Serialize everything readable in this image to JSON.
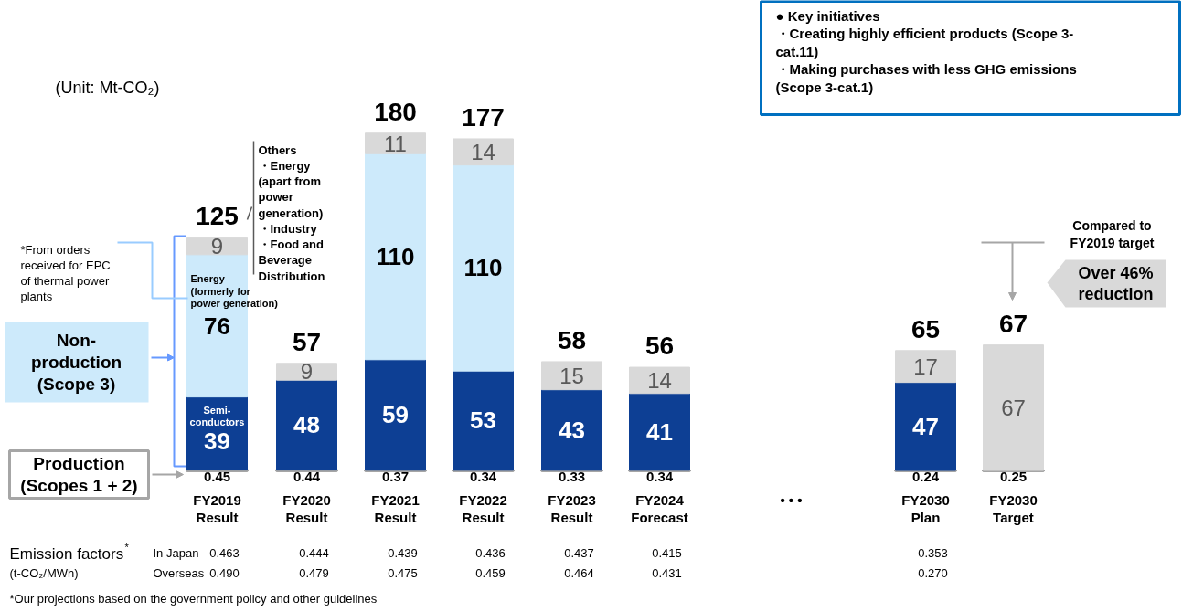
{
  "chart_data": {
    "type": "bar",
    "stacked": true,
    "data_labels": true,
    "legend": "left",
    "categories": [
      "FY2019\nResult",
      "FY2020\nResult",
      "FY2021\nResult",
      "FY2022\nResult",
      "FY2023\nResult",
      "FY2024\nForecast",
      "• • •",
      "FY2030\nPlan",
      "FY2030\nTarget"
    ],
    "series": [
      {
        "name": "Production\n(Scopes 1 + 2)",
        "color": "#ffffff",
        "values": [
          0.45,
          0.44,
          0.37,
          0.34,
          0.33,
          0.34,
          null,
          0.24,
          0.25
        ]
      },
      {
        "name": "Semi-\nconductors",
        "color": "#0d3f94",
        "values": [
          39,
          48,
          59,
          53,
          43,
          41,
          null,
          47,
          null
        ]
      },
      {
        "name": "Energy\n(formerly for\npower generation)",
        "color": "#cdeafb",
        "values": [
          76,
          null,
          110,
          110,
          null,
          null,
          null,
          null,
          null
        ]
      },
      {
        "color": "#d9d9d9",
        "values": [
          9,
          9,
          11,
          14,
          15,
          14,
          null,
          17,
          67
        ]
      }
    ],
    "totals": [
      "125",
      "57",
      "180",
      "177",
      "58",
      "56",
      null,
      "65",
      "67"
    ],
    "annotations": [
      "(Unit: Mt-CO₂)",
      "● Key initiatives\n・Creating highly efficient products (Scope 3-\n  cat.11)\n・Making purchases with less GHG emissions\n  (Scope 3-cat.1)",
      "Compared to\nFY2019 target",
      "Over 46%\nreduction",
      "Non-\nproduction\n(Scope 3)",
      "*From orders\nreceived for EPC\nof thermal power\nplants",
      "Others\n・Energy\n (apart from\n power\n generation)\n・Industry\n・Food and\n Beverage\n Distribution",
      "Emission factors$^{*}$",
      "(t-CO₂/MWh)",
      "In Japan",
      "0.463",
      "0.444",
      "0.439",
      "0.436",
      "0.437",
      "0.415",
      "0.353",
      "Overseas",
      "0.490",
      "0.479",
      "0.475",
      "0.459",
      "0.464",
      "0.431",
      "0.270",
      "*Our projections based on the government policy and other guidelines"
    ]
  }
}
